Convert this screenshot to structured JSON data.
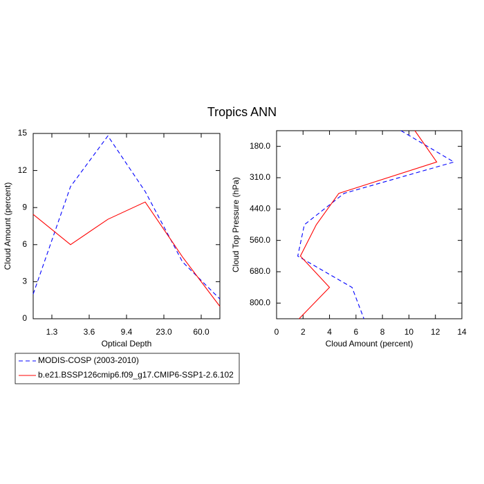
{
  "title": "Tropics ANN",
  "chart_data": [
    {
      "type": "line",
      "orientation": "vertical",
      "x_label": "Optical Depth",
      "y_label": "Cloud Amount (percent)",
      "x": [
        0,
        1,
        2,
        3,
        4,
        5
      ],
      "xlim": [
        0,
        5
      ],
      "xticks": [
        {
          "value": 0.5,
          "label": "1.3"
        },
        {
          "value": 1.5,
          "label": "3.6"
        },
        {
          "value": 2.5,
          "label": "9.4"
        },
        {
          "value": 3.5,
          "label": "23.0"
        },
        {
          "value": 4.5,
          "label": "60.0"
        }
      ],
      "ylim": [
        0,
        15
      ],
      "yticks": [
        0,
        3,
        6,
        9,
        12,
        15
      ],
      "series": [
        {
          "name": "MODIS-COSP (2003-2010)",
          "color": "#0000ff",
          "dashed": true,
          "values": [
            2.0,
            10.7,
            14.8,
            10.3,
            4.6,
            1.6
          ]
        },
        {
          "name": "b.e21.BSSP126cmip6.f09_g17.CMIP6-SSP1-2.6.102",
          "color": "#ff0000",
          "dashed": false,
          "values": [
            8.45,
            6.0,
            8.05,
            9.45,
            5.0,
            1.0
          ]
        }
      ]
    },
    {
      "type": "line",
      "orientation": "horizontal",
      "x_label": "Cloud Amount (percent)",
      "y_label": "Cloud Top Pressure (hPa)",
      "y": [
        0,
        1,
        2,
        3,
        4,
        5,
        6
      ],
      "ylim": [
        6,
        0
      ],
      "yticks": [
        {
          "value": 0.5,
          "label": "180.0"
        },
        {
          "value": 1.5,
          "label": "310.0"
        },
        {
          "value": 2.5,
          "label": "440.0"
        },
        {
          "value": 3.5,
          "label": "560.0"
        },
        {
          "value": 4.5,
          "label": "680.0"
        },
        {
          "value": 5.5,
          "label": "800.0"
        }
      ],
      "xlim": [
        0,
        14
      ],
      "xticks": [
        0,
        2,
        4,
        6,
        8,
        10,
        12,
        14
      ],
      "series": [
        {
          "color": "#0000ff",
          "dashed": true,
          "values": [
            9.4,
            13.4,
            5.1,
            2.1,
            1.6,
            5.7,
            6.6
          ]
        },
        {
          "color": "#ff0000",
          "dashed": false,
          "values": [
            10.45,
            12.1,
            4.7,
            3.0,
            1.8,
            4.0,
            1.7
          ]
        }
      ]
    }
  ]
}
